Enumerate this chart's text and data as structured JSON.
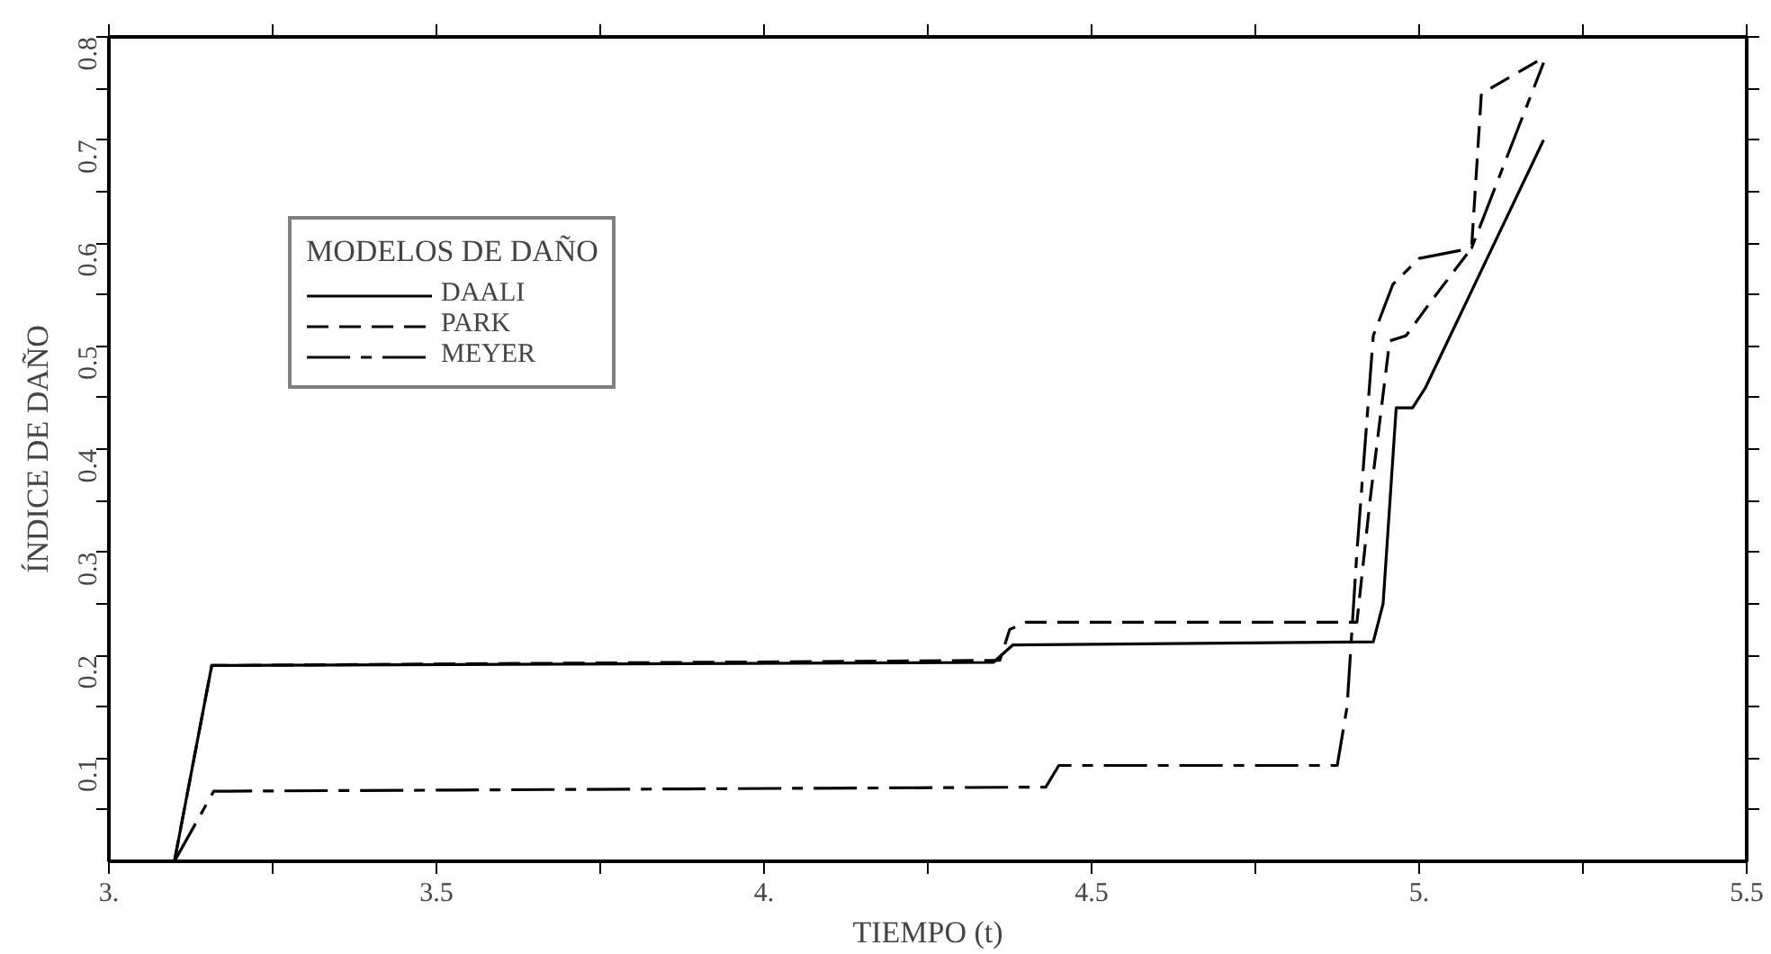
{
  "chart_data": {
    "type": "line",
    "xlabel": "TIEMPO (t)",
    "ylabel": "ÍNDICE DE DAÑO",
    "legend_title": "MODELOS DE DAÑO",
    "legend": "top left",
    "grid": false,
    "marker": "none",
    "xlim": [
      3.0,
      5.5
    ],
    "ylim": [
      0,
      0.8
    ],
    "xticks": [
      {
        "value": 3.0,
        "label": "3."
      },
      {
        "value": 3.25,
        "label": null
      },
      3.5,
      {
        "value": 3.75,
        "label": null
      },
      {
        "value": 4.0,
        "label": "4."
      },
      {
        "value": 4.25,
        "label": null
      },
      4.5,
      {
        "value": 4.75,
        "label": null
      },
      {
        "value": 5.0,
        "label": "5."
      },
      {
        "value": 5.25,
        "label": null
      },
      5.5
    ],
    "yticks": [
      {
        "value": 0.05,
        "label": null
      },
      0.1,
      {
        "value": 0.15,
        "label": null
      },
      0.2,
      {
        "value": 0.25,
        "label": null
      },
      0.3,
      {
        "value": 0.35,
        "label": null
      },
      0.4,
      {
        "value": 0.45,
        "label": null
      },
      0.5,
      {
        "value": 0.55,
        "label": null
      },
      0.6,
      {
        "value": 0.65,
        "label": null
      },
      0.7,
      {
        "value": 0.75,
        "label": null
      },
      0.8
    ],
    "series": [
      {
        "name": "DAALI",
        "color": "#000000",
        "line_style": "solid",
        "x": [
          3.1,
          3.157,
          4.35,
          4.38,
          4.93,
          4.945,
          4.965,
          4.99,
          5.01,
          5.19
        ],
        "values": [
          0,
          0.19,
          0.193,
          0.21,
          0.213,
          0.25,
          0.44,
          0.44,
          0.46,
          0.7
        ]
      },
      {
        "name": "PARK",
        "color": "#000000",
        "line_style": "dashed",
        "x": [
          3.1,
          3.157,
          4.36,
          4.375,
          4.4,
          4.905,
          4.925,
          4.955,
          4.98,
          5.02,
          5.08,
          5.095,
          5.19
        ],
        "values": [
          0,
          0.19,
          0.195,
          0.225,
          0.232,
          0.232,
          0.35,
          0.505,
          0.51,
          0.545,
          0.595,
          0.745,
          0.78
        ]
      },
      {
        "name": "MEYER",
        "color": "#000000",
        "line_style": "dashdot",
        "x": [
          3.1,
          3.16,
          4.43,
          4.45,
          4.875,
          4.89,
          4.905,
          4.93,
          4.96,
          5.0,
          5.08,
          5.19
        ],
        "values": [
          0,
          0.068,
          0.072,
          0.093,
          0.093,
          0.15,
          0.3,
          0.51,
          0.56,
          0.585,
          0.595,
          0.775
        ]
      }
    ]
  }
}
